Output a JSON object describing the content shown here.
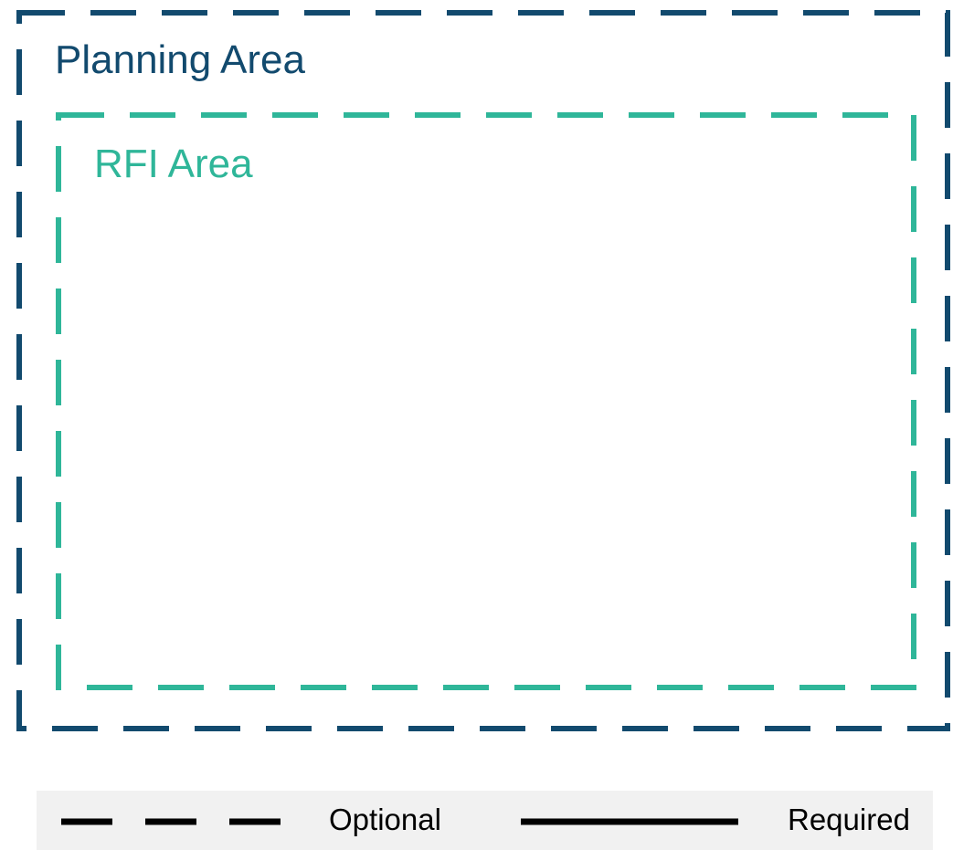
{
  "diagram": {
    "outer_area": {
      "label": "Planning Area",
      "color": "#124a6e",
      "line_style": "dashed"
    },
    "inner_area": {
      "label": "RFI Area",
      "color": "#2fb699",
      "line_style": "dashed"
    }
  },
  "legend": {
    "optional_label": "Optional",
    "required_label": "Required",
    "background_color": "#f1f1f1",
    "line_color": "#000000"
  }
}
